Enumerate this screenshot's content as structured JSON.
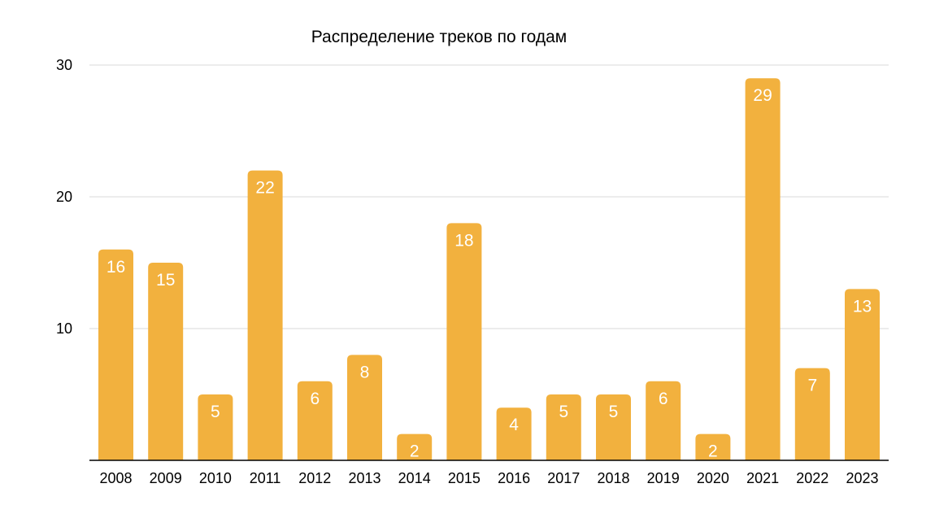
{
  "chart_data": {
    "type": "bar",
    "title": "Распределение треков по годам",
    "xlabel": "",
    "ylabel": "",
    "categories": [
      "2008",
      "2009",
      "2010",
      "2011",
      "2012",
      "2013",
      "2014",
      "2015",
      "2016",
      "2017",
      "2018",
      "2019",
      "2020",
      "2021",
      "2022",
      "2023"
    ],
    "values": [
      16,
      15,
      5,
      22,
      6,
      8,
      2,
      18,
      4,
      5,
      5,
      6,
      2,
      29,
      7,
      13
    ],
    "data_labels": [
      "16",
      "15",
      "5",
      "22",
      "6",
      "8",
      "2",
      "18",
      "4",
      "5",
      "5",
      "6",
      "2",
      "29",
      "7",
      "13"
    ],
    "ylim": [
      0,
      30
    ],
    "y_ticks": [
      10,
      20,
      30
    ],
    "y_tick_labels": [
      "10",
      "20",
      "30"
    ],
    "grid": true,
    "legend": "none",
    "bar_color": "#f2b13e",
    "label_color": "#ffffff",
    "grid_color": "#d9d9d9",
    "axis_color": "#000000"
  }
}
